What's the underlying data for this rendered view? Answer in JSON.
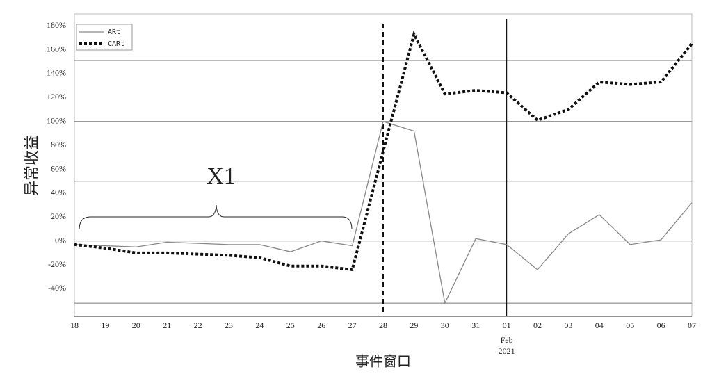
{
  "chart_data": {
    "type": "line",
    "y_label": "异常收益",
    "x_label": "事件窗口",
    "annotation": "X1",
    "x_sublabel": [
      "Feb",
      "2021"
    ],
    "categories": [
      "18",
      "19",
      "20",
      "21",
      "22",
      "23",
      "24",
      "25",
      "26",
      "27",
      "28",
      "29",
      "30",
      "31",
      "01",
      "02",
      "03",
      "04",
      "05",
      "06",
      "07"
    ],
    "series": [
      {
        "name": "ARt",
        "color": "#888888",
        "values": [
          -3,
          -4,
          -5,
          -1,
          -2,
          -3,
          -3,
          -9,
          0,
          -4,
          100,
          92,
          -52,
          2,
          -3,
          -24,
          6,
          22,
          -3,
          1,
          32
        ]
      },
      {
        "name": "CARt",
        "color": "#111111",
        "values": [
          -3,
          -6,
          -10,
          -10,
          -11,
          -12,
          -14,
          -21,
          -21,
          -24,
          75,
          173,
          123,
          126,
          124,
          101,
          110,
          133,
          131,
          133,
          165
        ]
      }
    ],
    "ylim": [
      -63,
      190
    ],
    "yticks": [
      {
        "value": -40,
        "label": "-40%"
      },
      {
        "value": -20,
        "label": "-20%"
      },
      {
        "value": 0,
        "label": "0%"
      },
      {
        "value": 20,
        "label": "20%"
      },
      {
        "value": 40,
        "label": "40%"
      },
      {
        "value": 60,
        "label": "60%"
      },
      {
        "value": 80,
        "label": "80%"
      },
      {
        "value": 100,
        "label": "100%"
      },
      {
        "value": 120,
        "label": "120%"
      },
      {
        "value": 140,
        "label": "140%"
      },
      {
        "value": 160,
        "label": "160%"
      },
      {
        "value": 180,
        "label": "180%"
      }
    ],
    "grid_lines": [
      -52,
      0,
      50,
      100,
      151
    ],
    "legend": "upper left"
  }
}
